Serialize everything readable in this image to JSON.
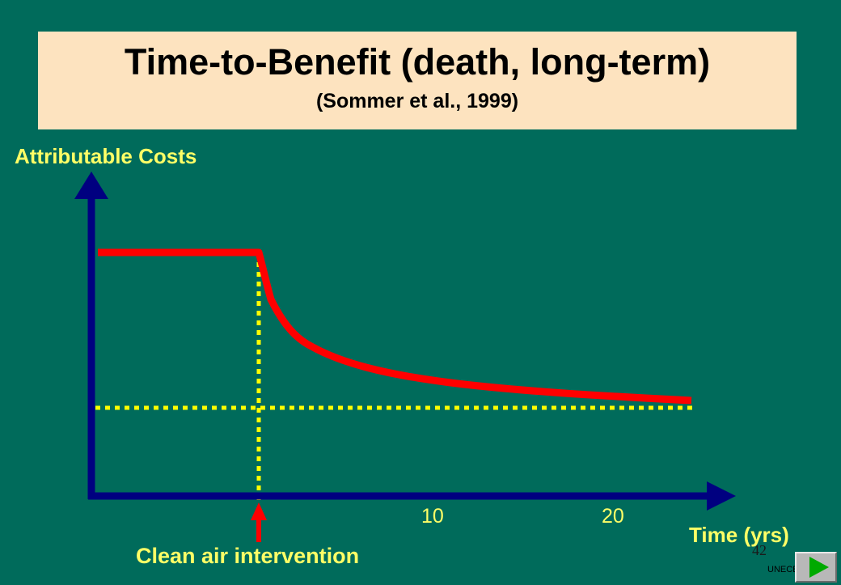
{
  "title": "Time-to-Benefit (death, long-term)",
  "subtitle": "(Sommer et al., 1999)",
  "axes": {
    "ylabel": "Attributable Costs",
    "xlabel": "Time (yrs)",
    "x_ticks": [
      "10",
      "20"
    ]
  },
  "annotation": {
    "intervention_label": "Clean air intervention"
  },
  "footer": {
    "slide_number": "42",
    "organization": "UNECE"
  },
  "colors": {
    "background": "#006b5b",
    "title_box": "#fde3bf",
    "label_text": "#ffff66",
    "axis": "#000080",
    "curve": "#ff0000",
    "guide_lines": "#ffff00"
  },
  "icons": {
    "next_button": "play-right-icon"
  }
}
